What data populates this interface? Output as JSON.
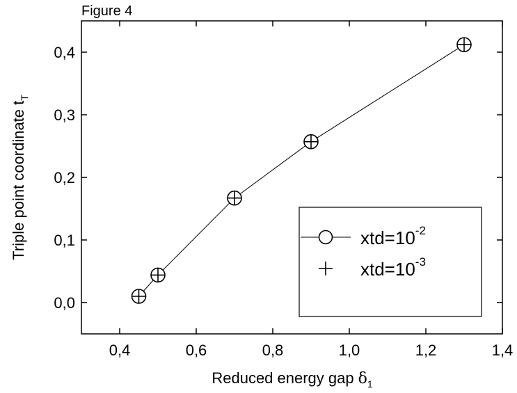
{
  "figure_label": "Figure 4",
  "chart_data": {
    "type": "line",
    "xlabel": "Reduced energy gap",
    "xlabel_symbol": "δ",
    "xlabel_sub": "1",
    "ylabel": "Triple point coordinate t",
    "ylabel_sub": "T",
    "xlim": [
      0.3,
      1.4
    ],
    "ylim": [
      -0.05,
      0.45
    ],
    "x_ticks": [
      0.4,
      0.6,
      0.8,
      1.0,
      1.2,
      1.4
    ],
    "x_tick_labels": [
      "0,4",
      "0,6",
      "0,8",
      "1,0",
      "1,2",
      "1,4"
    ],
    "y_ticks": [
      0.0,
      0.1,
      0.2,
      0.3,
      0.4
    ],
    "y_tick_labels": [
      "0,0",
      "0,1",
      "0,2",
      "0,3",
      "0,4"
    ],
    "grid": false,
    "legend_position": "bottom-right",
    "series": [
      {
        "name": "xtd=10",
        "exponent": "-2",
        "marker": "circle",
        "line": true,
        "x": [
          0.45,
          0.5,
          0.7,
          0.9,
          1.3
        ],
        "y": [
          0.01,
          0.044,
          0.167,
          0.257,
          0.412
        ]
      },
      {
        "name": "xtd=10",
        "exponent": "-3",
        "marker": "plus",
        "line": false,
        "x": [
          0.45,
          0.5,
          0.7,
          0.9,
          1.3
        ],
        "y": [
          0.01,
          0.044,
          0.167,
          0.257,
          0.412
        ]
      }
    ]
  }
}
